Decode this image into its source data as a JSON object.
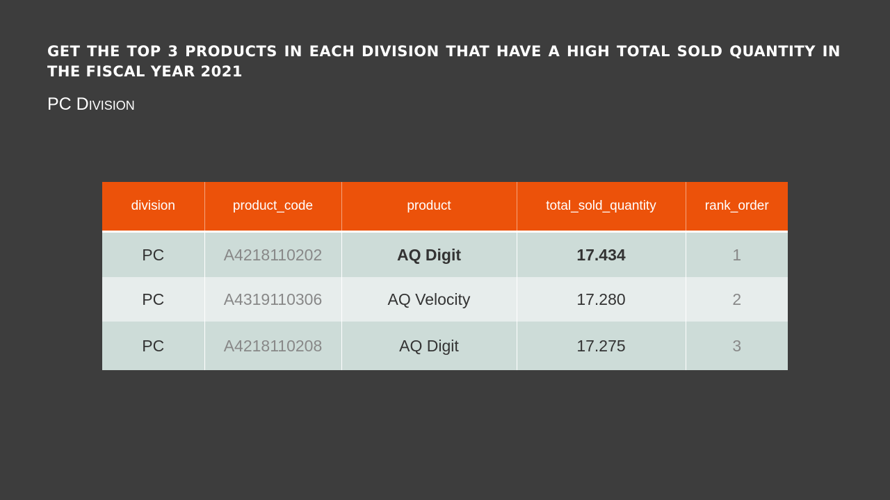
{
  "slide": {
    "title": "Get the top 3 products in each division that have a high total sold quantity in the fiscal year 2021",
    "subtitle": "PC Division"
  },
  "table": {
    "headers": [
      "division",
      "product_code",
      "product",
      "total_sold_quantity",
      "rank_order"
    ],
    "rows": [
      {
        "division": "PC",
        "product_code": "A4218110202",
        "product": "AQ Digit",
        "total_sold_quantity": "17.434",
        "rank_order": "1"
      },
      {
        "division": "PC",
        "product_code": "A4319110306",
        "product": "AQ Velocity",
        "total_sold_quantity": "17.280",
        "rank_order": "2"
      },
      {
        "division": "PC",
        "product_code": "A4218110208",
        "product": "AQ Digit",
        "total_sold_quantity": "17.275",
        "rank_order": "3"
      }
    ]
  },
  "colors": {
    "background": "#3d3d3d",
    "header_fill": "#ec520a",
    "row_dark": "#cddcd8",
    "row_light": "#e7edec"
  }
}
